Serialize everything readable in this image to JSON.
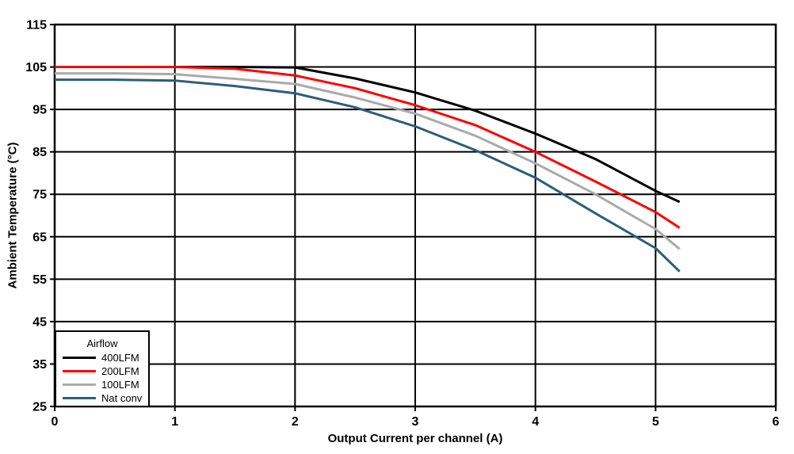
{
  "chart_data": {
    "type": "line",
    "title": "",
    "xlabel": "Output Current per channel (A)",
    "ylabel": "Ambient Temperature (°C)",
    "xlim": [
      0,
      6
    ],
    "ylim": [
      25,
      115
    ],
    "xticks": [
      0,
      1,
      2,
      3,
      4,
      5,
      6
    ],
    "yticks": [
      25,
      35,
      45,
      55,
      65,
      75,
      85,
      95,
      105,
      115
    ],
    "grid": true,
    "grid_color": "#000000",
    "background_color": "#ffffff",
    "legend": {
      "title": "Airflow",
      "position": "bottom-left"
    },
    "x": [
      0,
      0.5,
      1,
      1.5,
      2,
      2.5,
      3,
      3.5,
      4,
      4.5,
      5,
      5.2
    ],
    "series": [
      {
        "name": "400LFM",
        "color": "#000000",
        "values": [
          105,
          105,
          105,
          105,
          104.9,
          102.3,
          99,
          94.7,
          89.3,
          83.3,
          75.8,
          73.2
        ]
      },
      {
        "name": "200LFM",
        "color": "#ff0000",
        "values": [
          105,
          105,
          105,
          104.6,
          103,
          100,
          96,
          91.3,
          85,
          78,
          70.8,
          67.1
        ]
      },
      {
        "name": "100LFM",
        "color": "#aaaaaa",
        "values": [
          103.5,
          103.5,
          103.3,
          102.2,
          101,
          97.8,
          94,
          88.8,
          82.3,
          75,
          66.8,
          62.1
        ]
      },
      {
        "name": "Nat conv",
        "color": "#2b5f77",
        "values": [
          102,
          102,
          101.8,
          100.5,
          98.8,
          95.5,
          91,
          85.4,
          78.9,
          70.5,
          62.3,
          56.8
        ]
      }
    ]
  }
}
